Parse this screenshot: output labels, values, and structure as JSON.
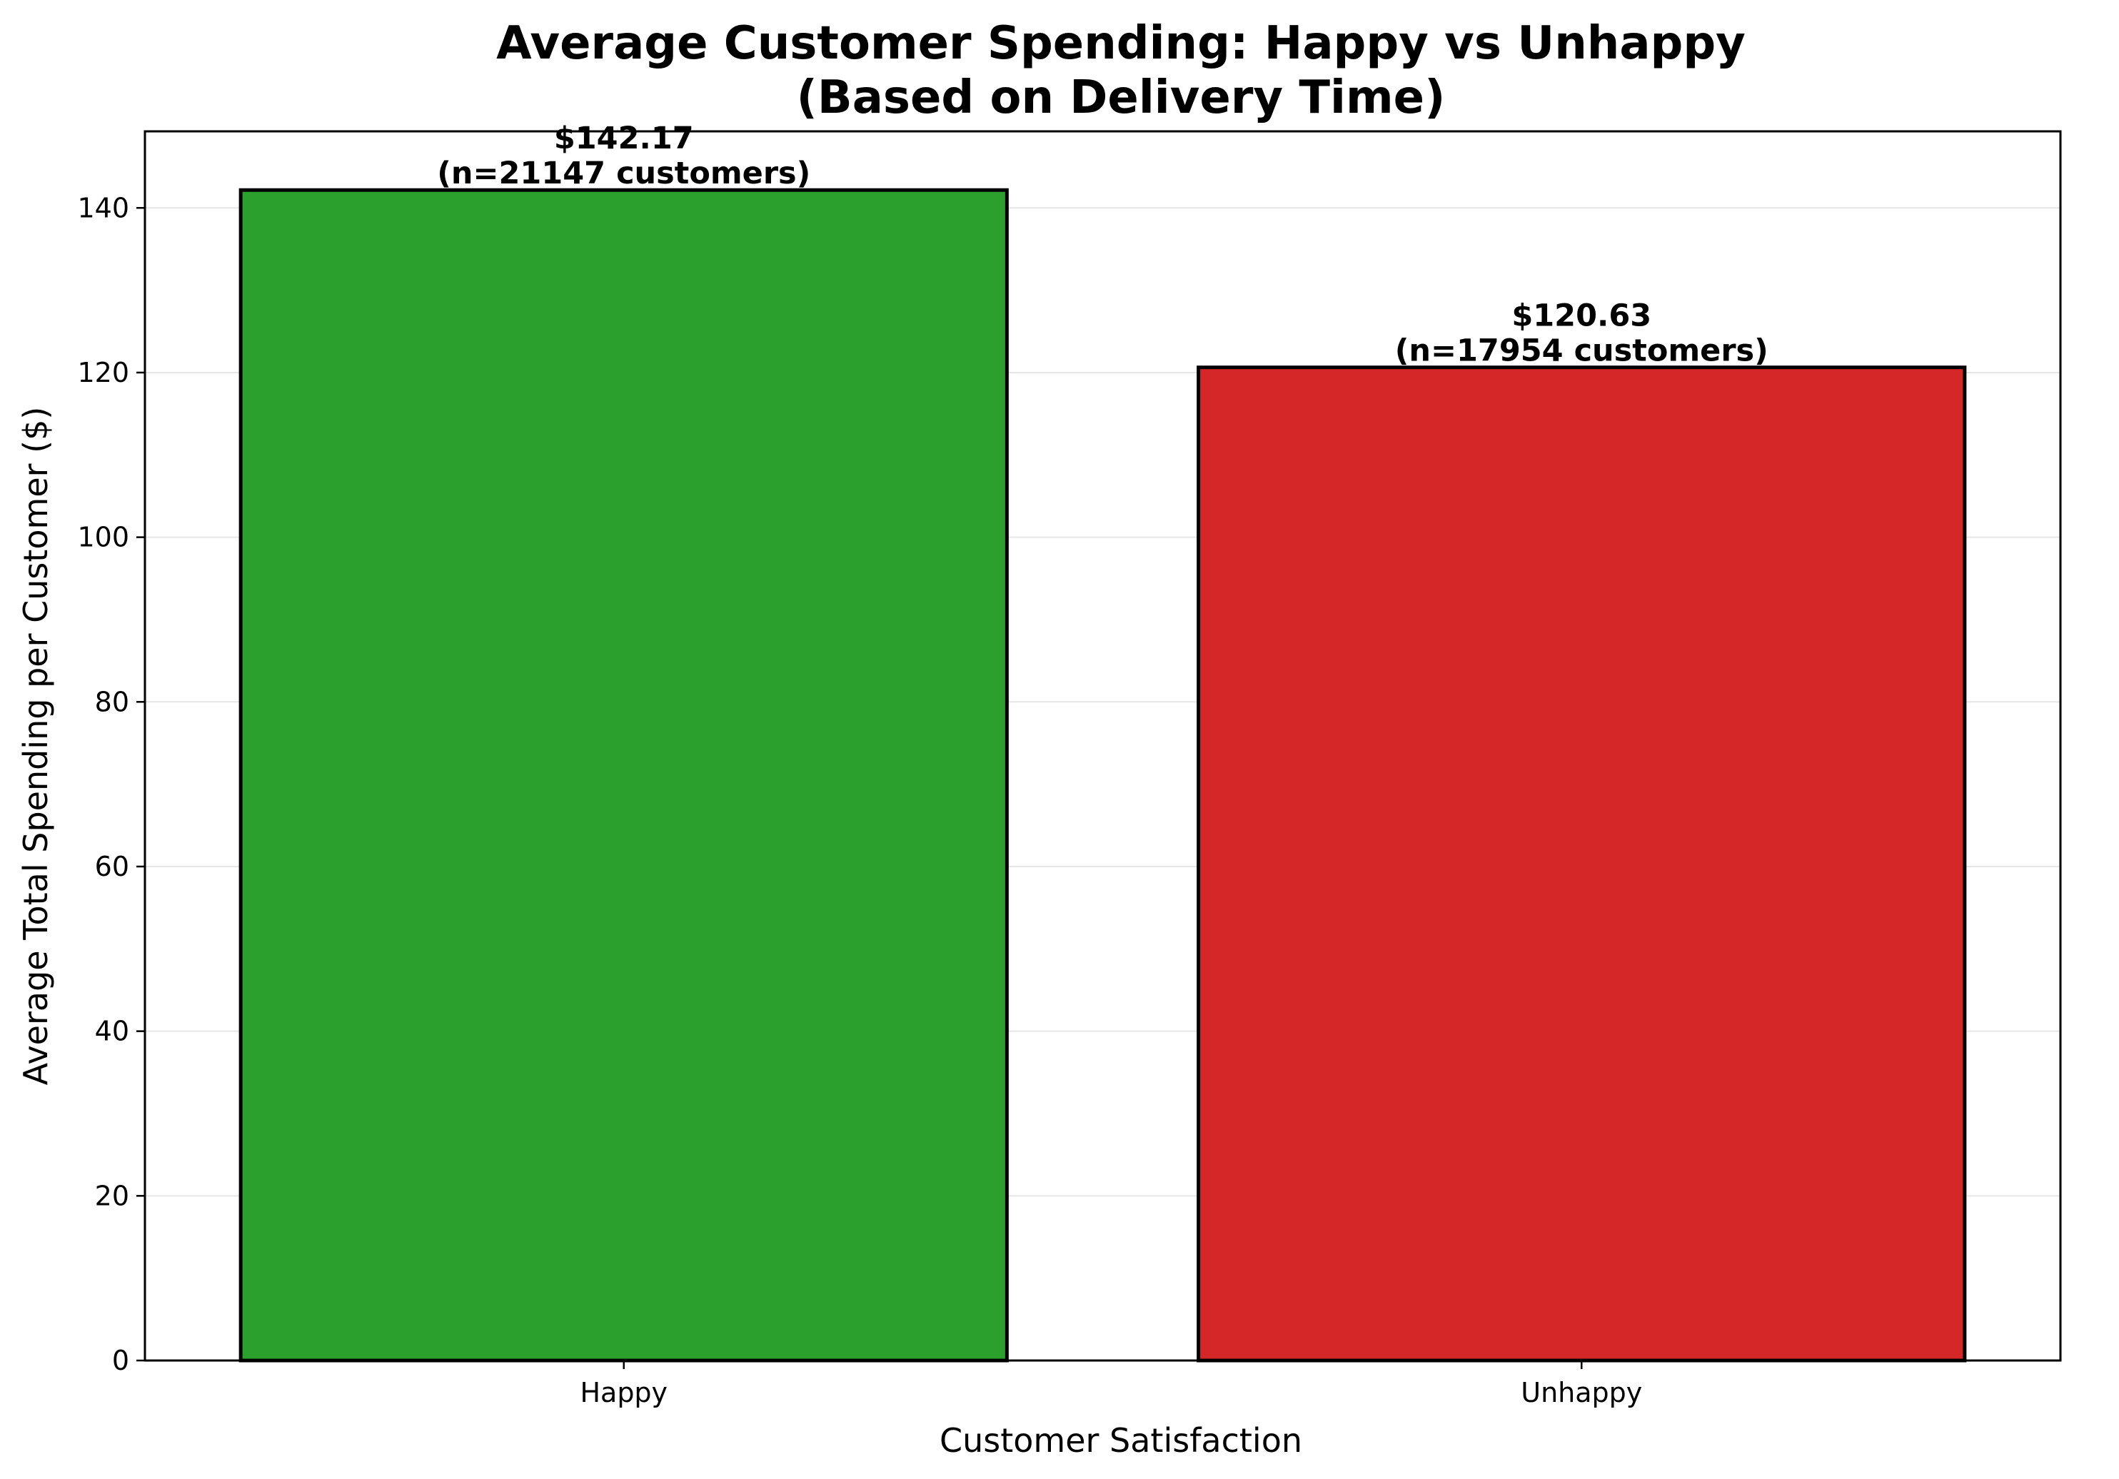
{
  "chart_data": {
    "type": "bar",
    "title_lines": [
      "Average Customer Spending: Happy vs Unhappy",
      "(Based on Delivery Time)"
    ],
    "xlabel": "Customer Satisfaction",
    "ylabel": "Average Total Spending per Customer ($)",
    "categories": [
      "Happy",
      "Unhappy"
    ],
    "values": [
      142.17,
      120.63
    ],
    "colors": [
      "#2ca02c",
      "#d62728"
    ],
    "edge_color": "#000000",
    "data_labels": [
      [
        "$142.17",
        "(n=21147 customers)"
      ],
      [
        "$120.63",
        "(n=17954 customers)"
      ]
    ],
    "ylim": [
      0,
      149.3
    ],
    "yticks": [
      0,
      20,
      40,
      60,
      80,
      100,
      120,
      140
    ],
    "grid": "y",
    "legend": "none"
  }
}
